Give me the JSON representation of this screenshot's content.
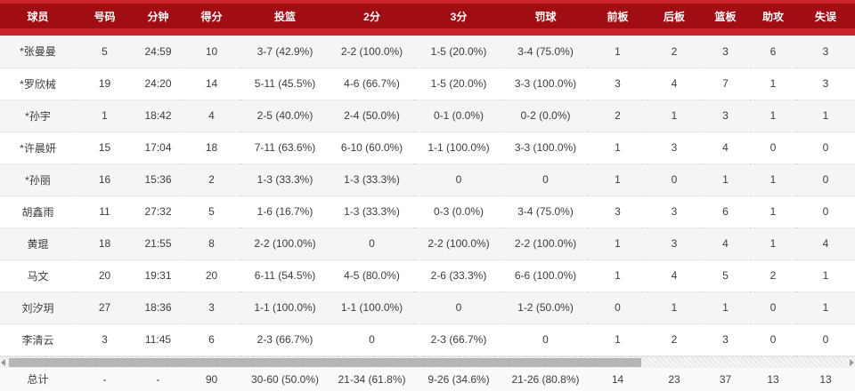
{
  "table": {
    "columns": [
      "球员",
      "号码",
      "分钟",
      "得分",
      "投篮",
      "2分",
      "3分",
      "罚球",
      "前板",
      "后板",
      "篮板",
      "助攻",
      "失误"
    ],
    "rows": [
      [
        "*张曼曼",
        "5",
        "24:59",
        "10",
        "3-7 (42.9%)",
        "2-2 (100.0%)",
        "1-5 (20.0%)",
        "3-4 (75.0%)",
        "1",
        "2",
        "3",
        "6",
        "3"
      ],
      [
        "*罗欣械",
        "19",
        "24:20",
        "14",
        "5-11 (45.5%)",
        "4-6 (66.7%)",
        "1-5 (20.0%)",
        "3-3 (100.0%)",
        "3",
        "4",
        "7",
        "1",
        "3"
      ],
      [
        "*孙宇",
        "1",
        "18:42",
        "4",
        "2-5 (40.0%)",
        "2-4 (50.0%)",
        "0-1 (0.0%)",
        "0-2 (0.0%)",
        "2",
        "1",
        "3",
        "1",
        "1"
      ],
      [
        "*许晨妍",
        "15",
        "17:04",
        "18",
        "7-11 (63.6%)",
        "6-10 (60.0%)",
        "1-1 (100.0%)",
        "3-3 (100.0%)",
        "1",
        "3",
        "4",
        "0",
        "0"
      ],
      [
        "*孙丽",
        "16",
        "15:36",
        "2",
        "1-3 (33.3%)",
        "1-3 (33.3%)",
        "0",
        "0",
        "1",
        "0",
        "1",
        "1",
        "0"
      ],
      [
        "胡鑫雨",
        "11",
        "27:32",
        "5",
        "1-6 (16.7%)",
        "1-3 (33.3%)",
        "0-3 (0.0%)",
        "3-4 (75.0%)",
        "3",
        "3",
        "6",
        "1",
        "0"
      ],
      [
        "黄琨",
        "18",
        "21:55",
        "8",
        "2-2 (100.0%)",
        "0",
        "2-2 (100.0%)",
        "2-2 (100.0%)",
        "1",
        "3",
        "4",
        "1",
        "4"
      ],
      [
        "马文",
        "20",
        "19:31",
        "20",
        "6-11 (54.5%)",
        "4-5 (80.0%)",
        "2-6 (33.3%)",
        "6-6 (100.0%)",
        "1",
        "4",
        "5",
        "2",
        "1"
      ],
      [
        "刘汐玥",
        "27",
        "18:36",
        "3",
        "1-1 (100.0%)",
        "1-1 (100.0%)",
        "0",
        "1-2 (50.0%)",
        "0",
        "1",
        "1",
        "0",
        "1"
      ],
      [
        "李清云",
        "3",
        "11:45",
        "6",
        "2-3 (66.7%)",
        "0",
        "2-3 (66.7%)",
        "0",
        "1",
        "2",
        "3",
        "0",
        "0"
      ]
    ],
    "total_row": [
      "总计",
      "-",
      "-",
      "90",
      "30-60 (50.0%)",
      "21-34 (61.8%)",
      "9-26 (34.6%)",
      "21-26 (80.8%)",
      "14",
      "23",
      "37",
      "13",
      "13"
    ]
  },
  "scrollbar": {
    "orientation": "horizontal",
    "thumb_left_percent": 1,
    "thumb_width_percent": 74,
    "left_arrow_icon": "scroll-left-arrow",
    "right_arrow_icon": "scroll-right-arrow"
  },
  "colors": {
    "header_bg": "#a00d12",
    "accent_stripe": "#c9242a",
    "row_alt_bg": "#f5f5f5",
    "row_bg": "#ffffff",
    "total_row_bg": "#f9fafb",
    "header_text": "#ffffff",
    "cell_text": "#3c3c3c",
    "scrollbar_thumb": "#b5b5b5"
  }
}
